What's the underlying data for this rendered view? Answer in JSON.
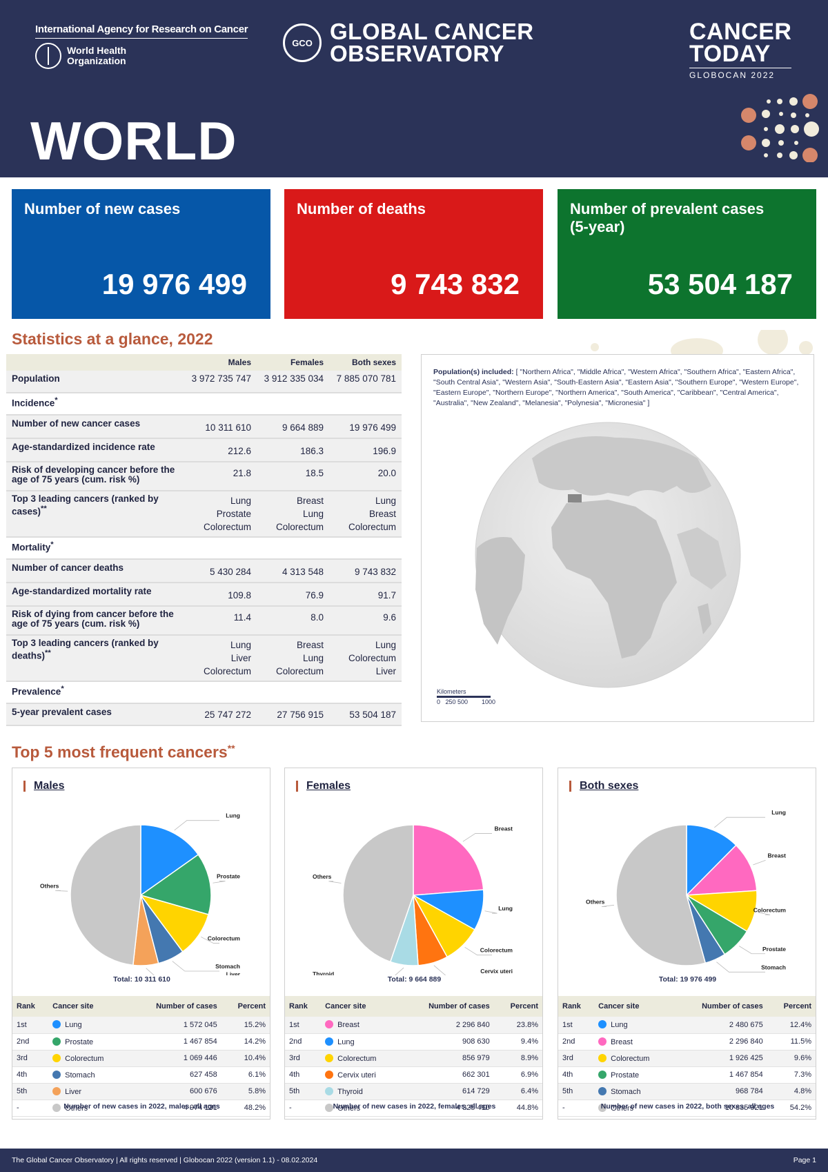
{
  "header": {
    "iarc": "International Agency for Research on Cancer",
    "who": "World Health Organization",
    "who_line1": "World Health",
    "who_line2": "Organization",
    "gco_logo": "GCO",
    "gco_line1": "GLOBAL CANCER",
    "gco_line2": "OBSERVATORY",
    "today_line1": "CANCER",
    "today_line2": "TODAY",
    "today_sub": "GLOBOCAN 2022",
    "region": "WORLD"
  },
  "cards": {
    "new_cases": {
      "label": "Number of new cases",
      "value": "19 976 499",
      "color": "#0657a8"
    },
    "deaths": {
      "label": "Number of deaths",
      "value": "9 743 832",
      "color": "#d91919"
    },
    "prevalent": {
      "label": "Number of prevalent cases (5-year)",
      "value": "53 504 187",
      "color": "#0d742e"
    }
  },
  "glance": {
    "title": "Statistics at a glance, 2022",
    "columns": [
      "Males",
      "Females",
      "Both sexes"
    ],
    "population": {
      "label": "Population",
      "values": [
        "3 972 735 747",
        "3 912 335 034",
        "7 885 070 781"
      ]
    },
    "incidence_label": "Incidence",
    "new_cases": {
      "label": "Number of new cancer cases",
      "values": [
        "10 311 610",
        "9 664 889",
        "19 976 499"
      ]
    },
    "asr_inc": {
      "label": "Age-standardized incidence rate",
      "values": [
        "212.6",
        "186.3",
        "196.9"
      ]
    },
    "risk_dev": {
      "label": "Risk of developing cancer before the age of 75 years (cum. risk %)",
      "values": [
        "21.8",
        "18.5",
        "20.0"
      ]
    },
    "top3_inc": {
      "label": "Top 3 leading cancers (ranked by cases)",
      "males": [
        "Lung",
        "Prostate",
        "Colorectum"
      ],
      "females": [
        "Breast",
        "Lung",
        "Colorectum"
      ],
      "both": [
        "Lung",
        "Breast",
        "Colorectum"
      ]
    },
    "mortality_label": "Mortality",
    "deaths": {
      "label": "Number of cancer deaths",
      "values": [
        "5 430 284",
        "4 313 548",
        "9 743 832"
      ]
    },
    "asr_mort": {
      "label": "Age-standardized mortality rate",
      "values": [
        "109.8",
        "76.9",
        "91.7"
      ]
    },
    "risk_die": {
      "label": "Risk of dying from cancer before the age of 75 years (cum. risk %)",
      "values": [
        "11.4",
        "8.0",
        "9.6"
      ]
    },
    "top3_mort": {
      "label": "Top 3 leading cancers (ranked by deaths)",
      "males": [
        "Lung",
        "Liver",
        "Colorectum"
      ],
      "females": [
        "Breast",
        "Lung",
        "Colorectum"
      ],
      "both": [
        "Lung",
        "Colorectum",
        "Liver"
      ]
    },
    "prevalence_label": "Prevalence",
    "prev5": {
      "label": "5-year prevalent cases",
      "values": [
        "25 747 272",
        "27 756 915",
        "53 504 187"
      ]
    }
  },
  "map": {
    "pop_label": "Population(s) included:",
    "pop_list": "[ \"Northern Africa\", \"Middle Africa\", \"Western Africa\", \"Southern Africa\", \"Eastern Africa\", \"South Central Asia\", \"Western Asia\", \"South-Eastern Asia\", \"Eastern Asia\", \"Southern Europe\", \"Western Europe\", \"Eastern Europe\", \"Northern Europe\", \"Northern America\", \"South America\", \"Caribbean\", \"Central America\", \"Australia\", \"New Zealand\", \"Melanesia\", \"Polynesia\", \"Micronesia\" ]",
    "scale_title": "Kilometers",
    "scale_ticks": "0   250 500        1000"
  },
  "top5": {
    "title": "Top 5 most frequent cancers",
    "title_mark": "**",
    "headers": [
      "Rank",
      "Cancer site",
      "Number of cases",
      "Percent"
    ],
    "panels": [
      {
        "title": "Males",
        "total": "Total: 10 311 610",
        "note": "Number of new cases in 2022, males, all ages",
        "rows": [
          {
            "rank": "1st",
            "site": "Lung",
            "cases": "1 572 045",
            "percent": "15.2%",
            "value": 15.2,
            "color": "#1e90ff"
          },
          {
            "rank": "2nd",
            "site": "Prostate",
            "cases": "1 467 854",
            "percent": "14.2%",
            "value": 14.2,
            "color": "#35a66a"
          },
          {
            "rank": "3rd",
            "site": "Colorectum",
            "cases": "1 069 446",
            "percent": "10.4%",
            "value": 10.4,
            "color": "#ffd400"
          },
          {
            "rank": "4th",
            "site": "Stomach",
            "cases": "627 458",
            "percent": "6.1%",
            "value": 6.1,
            "color": "#4478b0"
          },
          {
            "rank": "5th",
            "site": "Liver",
            "cases": "600 676",
            "percent": "5.8%",
            "value": 5.8,
            "color": "#f4a25a"
          },
          {
            "rank": "-",
            "site": "Others",
            "cases": "4 974 131",
            "percent": "48.2%",
            "value": 48.2,
            "color": "#c8c8c8"
          }
        ]
      },
      {
        "title": "Females",
        "total": "Total: 9 664 889",
        "note": "Number of new cases in 2022, females, all ages",
        "rows": [
          {
            "rank": "1st",
            "site": "Breast",
            "cases": "2 296 840",
            "percent": "23.8%",
            "value": 23.8,
            "color": "#ff69c0"
          },
          {
            "rank": "2nd",
            "site": "Lung",
            "cases": "908 630",
            "percent": "9.4%",
            "value": 9.4,
            "color": "#1e90ff"
          },
          {
            "rank": "3rd",
            "site": "Colorectum",
            "cases": "856 979",
            "percent": "8.9%",
            "value": 8.9,
            "color": "#ffd400"
          },
          {
            "rank": "4th",
            "site": "Cervix uteri",
            "cases": "662 301",
            "percent": "6.9%",
            "value": 6.9,
            "color": "#ff7410"
          },
          {
            "rank": "5th",
            "site": "Thyroid",
            "cases": "614 729",
            "percent": "6.4%",
            "value": 6.4,
            "color": "#a9dbe5"
          },
          {
            "rank": "-",
            "site": "Others",
            "cases": "4 325 410",
            "percent": "44.8%",
            "value": 44.8,
            "color": "#c8c8c8"
          }
        ]
      },
      {
        "title": "Both sexes",
        "total": "Total: 19 976 499",
        "note": "Number of new cases in 2022, both sexes, all ages",
        "rows": [
          {
            "rank": "1st",
            "site": "Lung",
            "cases": "2 480 675",
            "percent": "12.4%",
            "value": 12.4,
            "color": "#1e90ff"
          },
          {
            "rank": "2nd",
            "site": "Breast",
            "cases": "2 296 840",
            "percent": "11.5%",
            "value": 11.5,
            "color": "#ff69c0"
          },
          {
            "rank": "3rd",
            "site": "Colorectum",
            "cases": "1 926 425",
            "percent": "9.6%",
            "value": 9.6,
            "color": "#ffd400"
          },
          {
            "rank": "4th",
            "site": "Prostate",
            "cases": "1 467 854",
            "percent": "7.3%",
            "value": 7.3,
            "color": "#35a66a"
          },
          {
            "rank": "5th",
            "site": "Stomach",
            "cases": "968 784",
            "percent": "4.8%",
            "value": 4.8,
            "color": "#4478b0"
          },
          {
            "rank": "-",
            "site": "Others",
            "cases": "10 835 921",
            "percent": "54.2%",
            "value": 54.2,
            "color": "#c8c8c8"
          }
        ]
      }
    ]
  },
  "footer": {
    "text": "The Global Cancer Observatory | All rights reserved | Globocan 2022 (version 1.1) - 08.02.2024",
    "page": "Page 1"
  }
}
